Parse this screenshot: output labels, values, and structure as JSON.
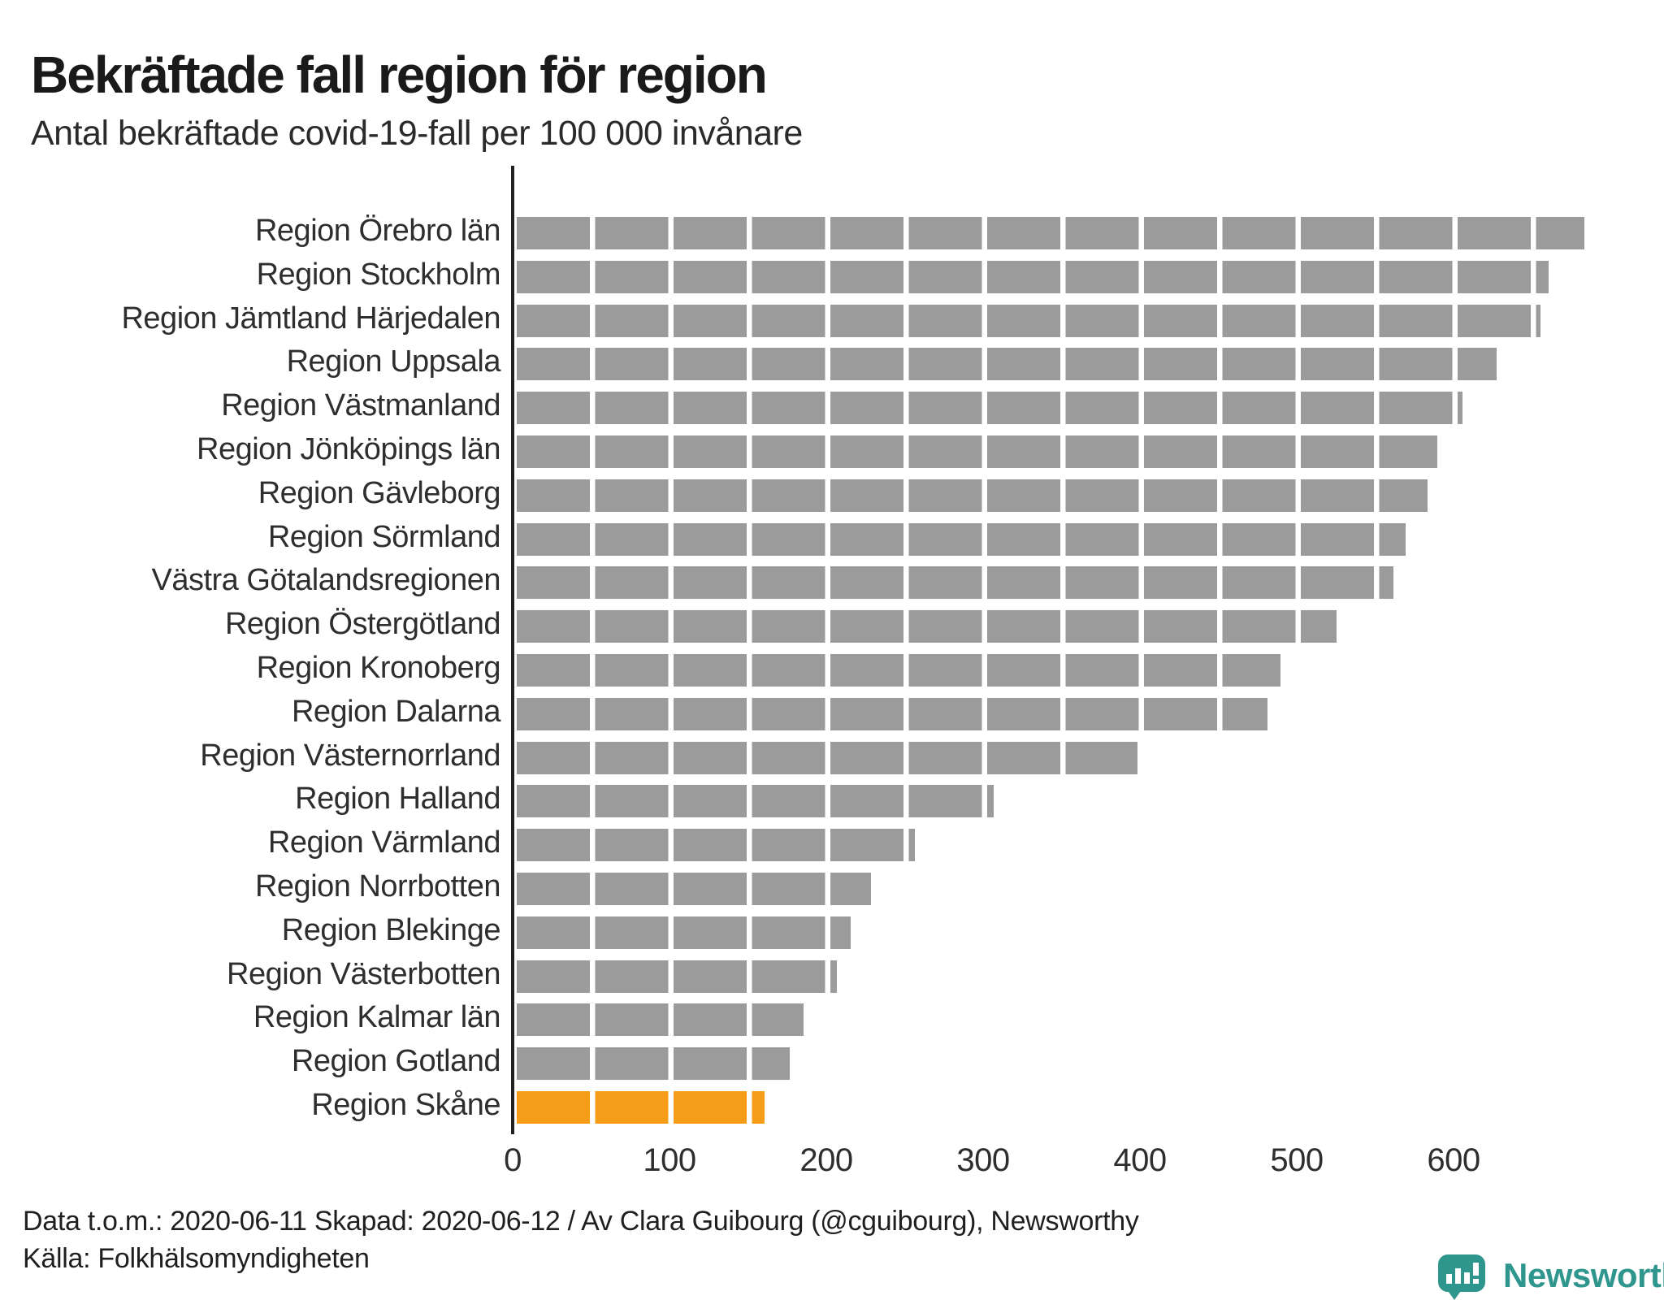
{
  "title": "Bekräftade fall region för region",
  "subtitle": "Antal bekräftade covid-19-fall per 100 000 invånare",
  "footer": {
    "line1": "Data t.o.m.: 2020-06-11 Skapad: 2020-06-12 / Av Clara Guibourg (@cguibourg), Newsworthy",
    "line2": "Källa: Folkhälsomyndigheten"
  },
  "logo": {
    "text": "Newsworthy"
  },
  "colors": {
    "bar_gray": "#9b9b9b",
    "bar_highlight_orange": "#f59c18",
    "axis_line": "#231f20",
    "text_dark": "#1a1a1a",
    "brand_teal": "#2f968d"
  },
  "chart_data": {
    "type": "bar",
    "orientation": "horizontal",
    "title": "Bekräftade fall region för region",
    "subtitle": "Antal bekräftade covid-19-fall per 100 000 invånare",
    "xlabel": "",
    "ylabel": "",
    "xlim": [
      0,
      700
    ],
    "xticks": [
      0,
      100,
      200,
      300,
      400,
      500,
      600
    ],
    "grid": false,
    "legend": false,
    "segment_size": 50,
    "categories": [
      "Region Örebro län",
      "Region Stockholm",
      "Region Jämtland Härjedalen",
      "Region Uppsala",
      "Region Västmanland",
      "Region Jönköpings län",
      "Region Gävleborg",
      "Region Sörmland",
      "Västra Götalandsregionen",
      "Region Östergötland",
      "Region Kronoberg",
      "Region Dalarna",
      "Region Västernorrland",
      "Region Halland",
      "Region Värmland",
      "Region Norrbotten",
      "Region Blekinge",
      "Region Västerbotten",
      "Region Kalmar län",
      "Region Gotland",
      "Region Skåne"
    ],
    "values": [
      681,
      658,
      653,
      625,
      603,
      587,
      581,
      567,
      559,
      523,
      487,
      479,
      396,
      304,
      254,
      226,
      213,
      204,
      183,
      174,
      158
    ],
    "highlight_category": "Region Skåne"
  }
}
